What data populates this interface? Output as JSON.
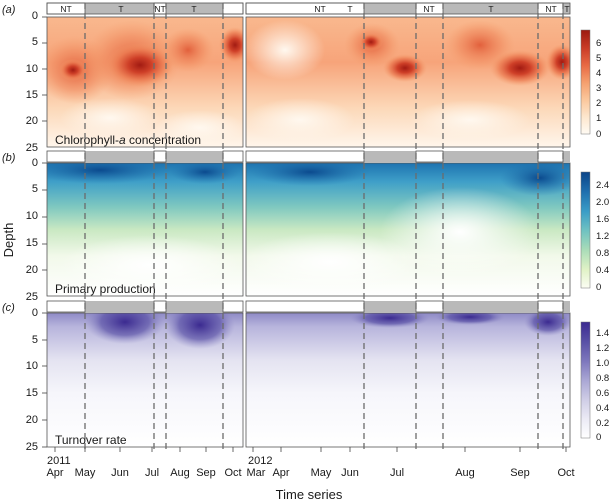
{
  "figure": {
    "x_axis_title": "Time series",
    "y_axis_title": "Depth",
    "x_tick_labels": [
      "Apr",
      "May",
      "Jun",
      "Jul",
      "Aug",
      "Sep",
      "Oct",
      "Mar",
      "Apr",
      "May",
      "Jun",
      "Jul",
      "Aug",
      "Sep",
      "Oct"
    ],
    "year_labels": [
      "2011",
      "2012"
    ],
    "y_tick_labels": [
      "0",
      "5",
      "10",
      "15",
      "20",
      "25"
    ],
    "mixing_period_labels": [
      "NT",
      "T",
      "NT",
      "T",
      "NT",
      "T",
      "NT",
      "T",
      "NT",
      "T"
    ],
    "colors": {
      "chlorophyll_scale": [
        "#fffbf4",
        "#fde7cf",
        "#fbc79c",
        "#f49e6d",
        "#e86a44",
        "#c93b26",
        "#9c1a10"
      ],
      "production_scale": [
        "#fbfdf3",
        "#e0f2c6",
        "#a9dcb8",
        "#6ec1c2",
        "#3a9dc7",
        "#1f6fae",
        "#0a4488"
      ],
      "turnover_scale": [
        "#ffffff",
        "#ecebf5",
        "#cfcde6",
        "#a9a6d4",
        "#7e78bd",
        "#5950a6",
        "#3b2a90"
      ]
    }
  },
  "chart_data": [
    {
      "type": "heatmap",
      "panel_label": "(a)",
      "title": "Chlorophyll-a concentration",
      "title_prefix": "Chlorophyll-",
      "title_italic": "a",
      "title_suffix": " concentration",
      "colorbar_ticks": [
        "0",
        "1",
        "2",
        "3",
        "4",
        "5",
        "6"
      ],
      "colorbar_range": [
        0,
        6.8
      ],
      "ylim": [
        25,
        0
      ],
      "approx_hotspots": [
        {
          "date": "2011-04-20",
          "depth": 10,
          "value": 5.5
        },
        {
          "date": "2011-06-20",
          "depth": 10,
          "value": 6.2
        },
        {
          "date": "2011-10-20",
          "depth": 5,
          "value": 5.5
        },
        {
          "date": "2012-06-15",
          "depth": 5,
          "value": 6.5
        },
        {
          "date": "2012-07-15",
          "depth": 10,
          "value": 6.0
        },
        {
          "date": "2012-09-10",
          "depth": 10,
          "value": 5.5
        }
      ]
    },
    {
      "type": "heatmap",
      "panel_label": "(b)",
      "title": "Primary production",
      "colorbar_ticks": [
        "0",
        "0.4",
        "0.8",
        "1.2",
        "1.6",
        "2.0",
        "2.4"
      ],
      "colorbar_range": [
        0,
        2.7
      ],
      "ylim": [
        25,
        0
      ]
    },
    {
      "type": "heatmap",
      "panel_label": "(c)",
      "title": "Turnover rate",
      "colorbar_ticks": [
        "0",
        "0.2",
        "0.4",
        "0.6",
        "0.8",
        "1.0",
        "1.2",
        "1.4"
      ],
      "colorbar_range": [
        0,
        1.5
      ],
      "ylim": [
        25,
        0
      ]
    }
  ]
}
